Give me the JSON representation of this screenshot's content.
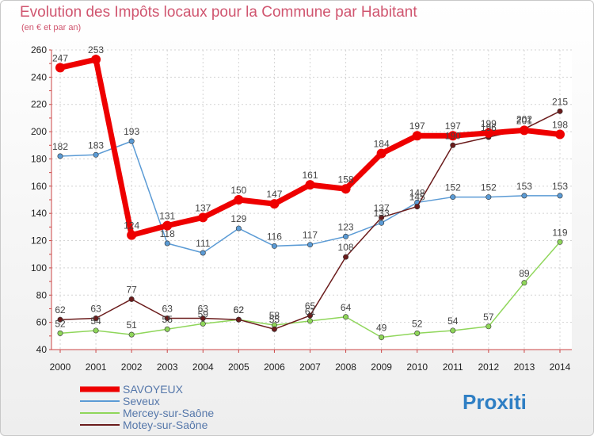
{
  "header": {
    "title": "Evolution des Impôts locaux pour la Commune par Habitant",
    "subtitle": "(en € et par an)"
  },
  "logo": {
    "text": "Proxiti"
  },
  "chart_data": {
    "type": "line",
    "title": "Evolution des Impôts locaux pour la Commune par Habitant",
    "subtitle": "(en € et par an)",
    "x": [
      2000,
      2001,
      2002,
      2003,
      2004,
      2005,
      2006,
      2007,
      2008,
      2009,
      2010,
      2011,
      2012,
      2013,
      2014
    ],
    "ylim": [
      40,
      260
    ],
    "yticks": [
      40,
      60,
      80,
      100,
      120,
      140,
      160,
      180,
      200,
      220,
      240,
      260
    ],
    "grid": true,
    "legend_position": "bottom-left",
    "series": [
      {
        "name": "SAVOYEUX",
        "color": "#ee0000",
        "values": [
          247,
          253,
          124,
          131,
          137,
          150,
          147,
          161,
          158,
          184,
          197,
          197,
          199,
          201,
          198
        ]
      },
      {
        "name": "Seveux",
        "color": "#5b9bd5",
        "values": [
          182,
          183,
          193,
          118,
          111,
          129,
          116,
          117,
          123,
          133,
          148,
          152,
          152,
          153,
          153
        ]
      },
      {
        "name": "Mercey-sur-Saône",
        "color": "#8fd65a",
        "values": [
          52,
          54,
          51,
          55,
          59,
          62,
          58,
          61,
          64,
          49,
          52,
          54,
          57,
          89,
          119
        ]
      },
      {
        "name": "Motey-sur-Saône",
        "color": "#6b1c1c",
        "values": [
          62,
          63,
          77,
          63,
          63,
          62,
          55,
          65,
          108,
          137,
          145,
          190,
          196,
          202,
          215
        ]
      }
    ]
  }
}
